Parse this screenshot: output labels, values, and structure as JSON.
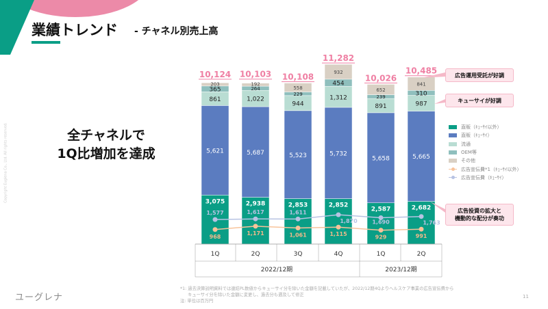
{
  "header": {
    "title": "業績トレンド",
    "subtitle": "- チャネル別売上高"
  },
  "headline": [
    "全チャネルで",
    "1Q比増加を達成"
  ],
  "copyright": "Copyright Euglena Co., Ltd. All rights reserved.",
  "logo": "ユーグレナ",
  "callouts": [
    "広告運用受託が好調",
    "キューサイが好調",
    "広告投資の拡大と",
    "機動的な配分が奏功"
  ],
  "footnotes": [
    "*1: 過去決算説明資料では連結PL数値からキューサイ分を除いた金額を記載していたが、2022/12期4Qよりヘルスケア事業の広告宣伝費から",
    "キューサイ分を除いた金額に変更し、過去分も遡及して修正",
    "注: 単位は百万円"
  ],
  "page_number": "11",
  "chart_data": {
    "type": "bar",
    "stacked": true,
    "categories": [
      "1Q",
      "2Q",
      "3Q",
      "4Q",
      "1Q",
      "2Q"
    ],
    "periods": [
      {
        "label": "2022/12期",
        "span": 4
      },
      {
        "label": "2023/12期",
        "span": 2
      }
    ],
    "totals": [
      "10,124",
      "10,103",
      "10,108",
      "11,282",
      "10,026",
      "10,485"
    ],
    "series": [
      {
        "name": "直販（ｷｭｰｻｲ以外）",
        "color": "#0a9e86",
        "values": [
          3075,
          2938,
          2853,
          2852,
          2587,
          2682
        ]
      },
      {
        "name": "直販（ｷｭｰｻｲ）",
        "color": "#5b7cc0",
        "values": [
          5621,
          5687,
          5523,
          5732,
          5658,
          5665
        ]
      },
      {
        "name": "流通",
        "color": "#b9ddd3",
        "values": [
          861,
          1022,
          944,
          1312,
          891,
          987
        ]
      },
      {
        "name": "OEM等",
        "color": "#8fbfbd",
        "values": [
          365,
          264,
          229,
          454,
          239,
          310
        ]
      },
      {
        "name": "その他",
        "color": "#d9d0c4",
        "values": [
          203,
          192,
          558,
          932,
          652,
          841
        ]
      }
    ],
    "lines": [
      {
        "name": "広告宣伝費*1（ｷｭｰｻｲ以外）",
        "color": "#f8c39a",
        "label_color": "#f2b98a",
        "values": [
          968,
          1171,
          1061,
          1115,
          929,
          991
        ]
      },
      {
        "name": "広告宣伝費（ｷｭｰｻｲ）",
        "color": "#b7c3e3",
        "label_color": "#b7c3e3",
        "values": [
          1577,
          1617,
          1611,
          1870,
          1690,
          1763
        ]
      }
    ],
    "total_color": "#ef7fa3",
    "unit": "百万円"
  }
}
